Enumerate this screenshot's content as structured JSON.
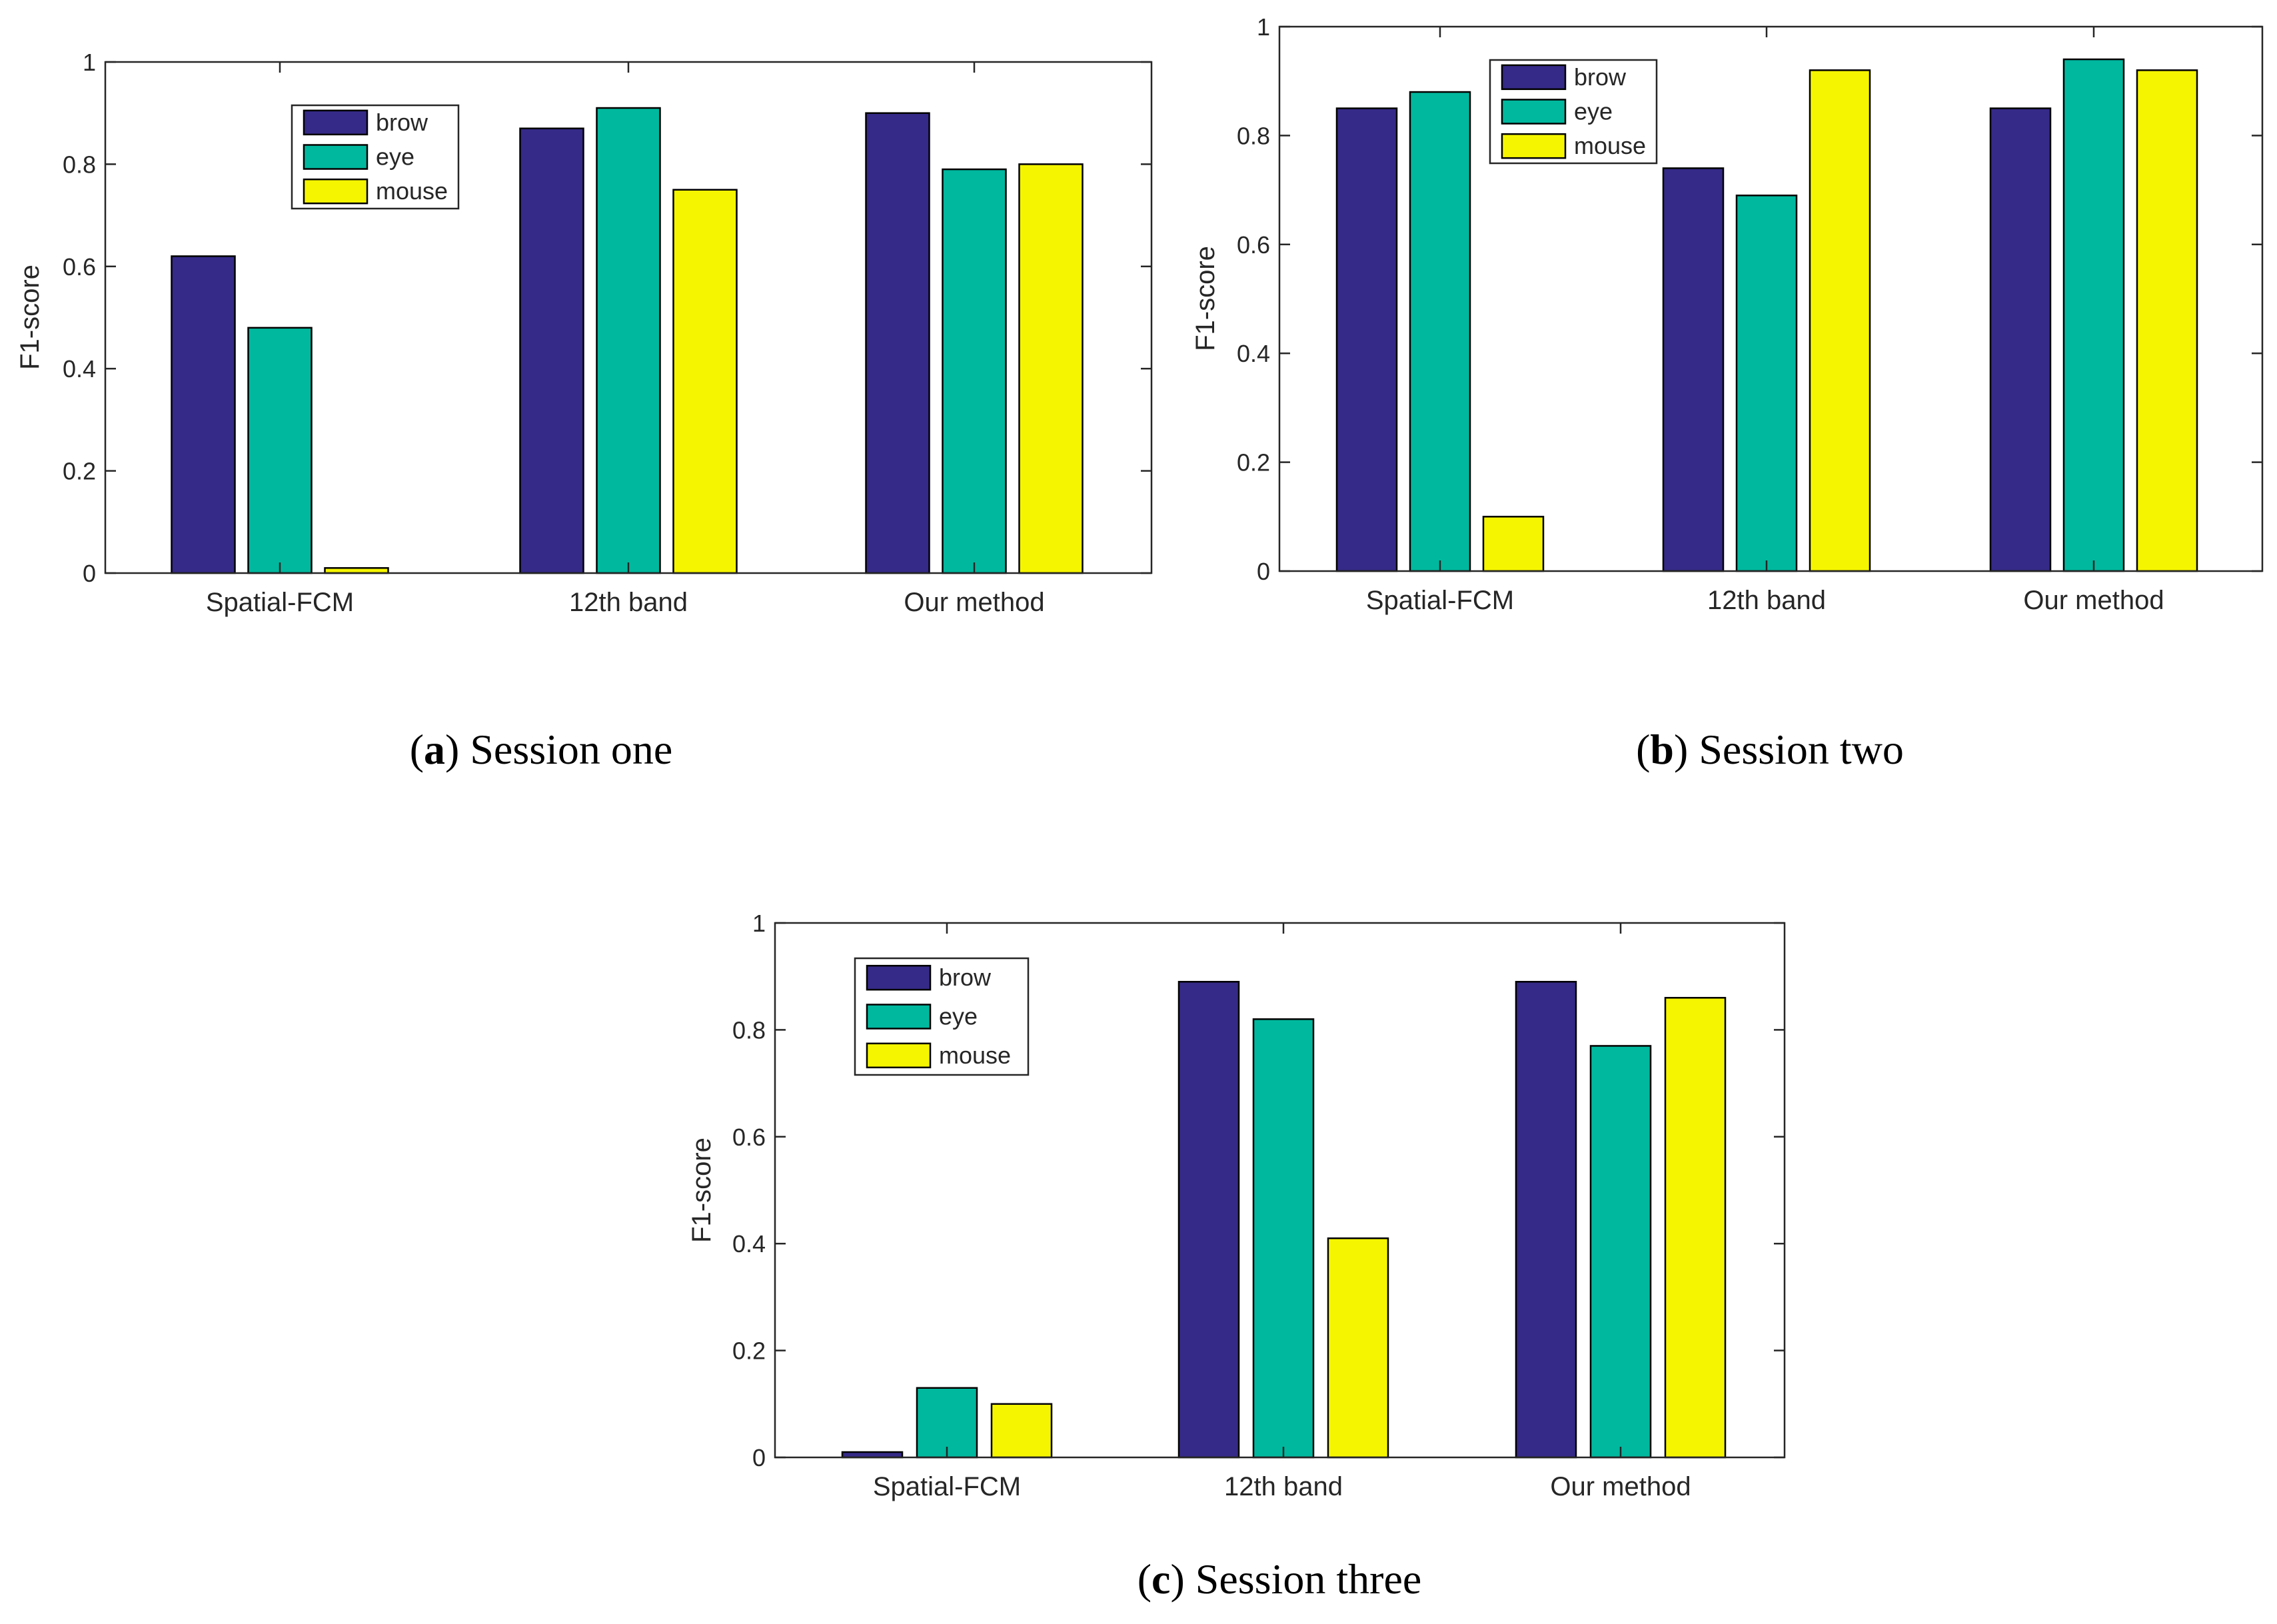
{
  "chart_data": [
    {
      "id": "a",
      "type": "bar",
      "categories": [
        "Spatial-FCM",
        "12th band",
        "Our method"
      ],
      "series": [
        {
          "name": "brow",
          "values": [
            0.62,
            0.87,
            0.9
          ]
        },
        {
          "name": "eye",
          "values": [
            0.48,
            0.91,
            0.79
          ]
        },
        {
          "name": "mouse",
          "values": [
            0.01,
            0.75,
            0.8
          ]
        }
      ],
      "ylabel": "F1-score",
      "ylim": [
        0,
        1
      ],
      "yticks": [
        0,
        0.2,
        0.4,
        0.6,
        0.8,
        1
      ],
      "ytick_labels": [
        "0",
        "0.2",
        "0.4",
        "0.6",
        "0.8",
        "1"
      ],
      "legend_position": "upper-middle",
      "caption_letter": "a",
      "caption_text": "Session one"
    },
    {
      "id": "b",
      "type": "bar",
      "categories": [
        "Spatial-FCM",
        "12th band",
        "Our method"
      ],
      "series": [
        {
          "name": "brow",
          "values": [
            0.85,
            0.74,
            0.85
          ]
        },
        {
          "name": "eye",
          "values": [
            0.88,
            0.69,
            0.94
          ]
        },
        {
          "name": "mouse",
          "values": [
            0.1,
            0.92,
            0.92
          ]
        }
      ],
      "ylabel": "F1-score",
      "ylim": [
        0,
        1
      ],
      "yticks": [
        0,
        0.2,
        0.4,
        0.6,
        0.8,
        1
      ],
      "ytick_labels": [
        "0",
        "0.2",
        "0.4",
        "0.6",
        "0.8",
        "1"
      ],
      "legend_position": "top-left",
      "caption_letter": "b",
      "caption_text": "Session two"
    },
    {
      "id": "c",
      "type": "bar",
      "categories": [
        "Spatial-FCM",
        "12th band",
        "Our method"
      ],
      "series": [
        {
          "name": "brow",
          "values": [
            0.01,
            0.89,
            0.89
          ]
        },
        {
          "name": "eye",
          "values": [
            0.13,
            0.82,
            0.77
          ]
        },
        {
          "name": "mouse",
          "values": [
            0.1,
            0.41,
            0.86
          ]
        }
      ],
      "ylabel": "F1-score",
      "ylim": [
        0,
        1
      ],
      "yticks": [
        0,
        0.2,
        0.4,
        0.6,
        0.8,
        1
      ],
      "ytick_labels": [
        "0",
        "0.2",
        "0.4",
        "0.6",
        "0.8",
        "1"
      ],
      "legend_position": "top-left",
      "caption_letter": "c",
      "caption_text": "Session three"
    }
  ],
  "colors": {
    "brow": "#352A87",
    "eye": "#00B89E",
    "mouse": "#F5F500"
  }
}
